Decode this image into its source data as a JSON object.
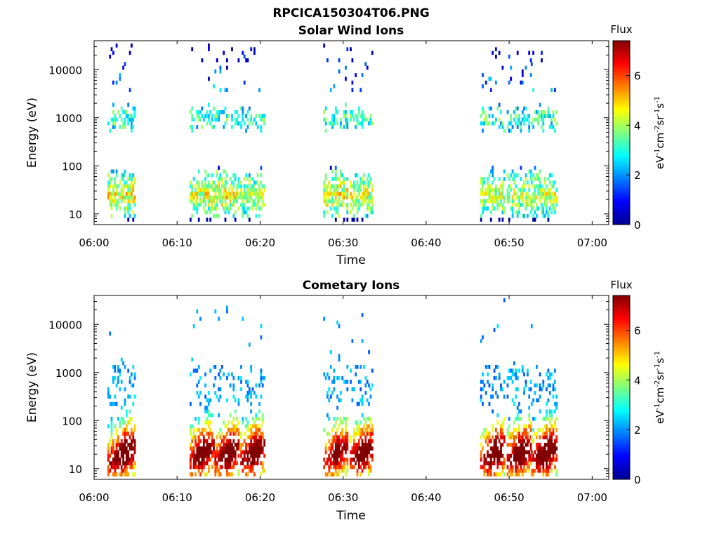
{
  "figure_title": "RPCICA150304T06.PNG",
  "chart_data": [
    {
      "type": "heatmap",
      "title": "Solar Wind Ions",
      "xlabel": "Time",
      "ylabel": "Energy (eV)",
      "x_range_minutes": [
        0,
        62
      ],
      "x_ticks": [
        {
          "label": "06:00",
          "minute": 0
        },
        {
          "label": "06:10",
          "minute": 10
        },
        {
          "label": "06:20",
          "minute": 20
        },
        {
          "label": "06:30",
          "minute": 30
        },
        {
          "label": "06:40",
          "minute": 40
        },
        {
          "label": "06:50",
          "minute": 50
        },
        {
          "label": "07:00",
          "minute": 60
        }
      ],
      "y_scale": "log",
      "y_range": [
        6,
        40000
      ],
      "y_ticks": [
        {
          "label": "10",
          "value": 10
        },
        {
          "label": "100",
          "value": 100
        },
        {
          "label": "1000",
          "value": 1000
        },
        {
          "label": "10000",
          "value": 10000
        }
      ],
      "colorbar": {
        "label": "Flux",
        "unit_label": "eV-1cm-2sr-1s-1",
        "range": [
          0,
          7.4
        ],
        "ticks": [
          "0",
          "2",
          "4",
          "6"
        ],
        "colormap": "jet"
      },
      "bursts": [
        {
          "start": 1.6,
          "end": 5.0,
          "peak": 3.6,
          "flux_max": 4.6
        },
        {
          "start": 11.5,
          "end": 14.3,
          "peak": 13.0,
          "flux_max": 4.4
        },
        {
          "start": 14.5,
          "end": 17.4,
          "peak": 16.1,
          "flux_max": 4.6
        },
        {
          "start": 17.6,
          "end": 20.5,
          "peak": 19.2,
          "flux_max": 4.3
        },
        {
          "start": 27.6,
          "end": 30.4,
          "peak": 29.2,
          "flux_max": 4.6
        },
        {
          "start": 30.8,
          "end": 33.5,
          "peak": 32.3,
          "flux_max": 4.4
        },
        {
          "start": 46.5,
          "end": 49.5,
          "peak": 48.3,
          "flux_max": 4.3
        },
        {
          "start": 49.7,
          "end": 52.6,
          "peak": 51.3,
          "flux_max": 4.2
        },
        {
          "start": 52.6,
          "end": 55.8,
          "peak": 54.4,
          "flux_max": 4.2
        }
      ]
    },
    {
      "type": "heatmap",
      "title": "Cometary Ions",
      "xlabel": "Time",
      "ylabel": "Energy (eV)",
      "x_range_minutes": [
        0,
        62
      ],
      "x_ticks": [
        {
          "label": "06:00",
          "minute": 0
        },
        {
          "label": "06:10",
          "minute": 10
        },
        {
          "label": "06:20",
          "minute": 20
        },
        {
          "label": "06:30",
          "minute": 30
        },
        {
          "label": "06:40",
          "minute": 40
        },
        {
          "label": "06:50",
          "minute": 50
        },
        {
          "label": "07:00",
          "minute": 60
        }
      ],
      "y_scale": "log",
      "y_range": [
        6,
        40000
      ],
      "y_ticks": [
        {
          "label": "10",
          "value": 10
        },
        {
          "label": "100",
          "value": 100
        },
        {
          "label": "1000",
          "value": 1000
        },
        {
          "label": "10000",
          "value": 10000
        }
      ],
      "colorbar": {
        "label": "Flux",
        "unit_label": "eV-1cm-2sr-1s-1",
        "range": [
          0,
          7.4
        ],
        "ticks": [
          "0",
          "2",
          "4",
          "6"
        ],
        "colormap": "jet"
      },
      "bursts": [
        {
          "start": 1.6,
          "end": 5.0,
          "peak": 3.6,
          "flux_max": 7.0
        },
        {
          "start": 11.5,
          "end": 14.3,
          "peak": 13.0,
          "flux_max": 7.0
        },
        {
          "start": 14.5,
          "end": 17.4,
          "peak": 16.1,
          "flux_max": 7.0
        },
        {
          "start": 17.6,
          "end": 20.5,
          "peak": 19.2,
          "flux_max": 6.9
        },
        {
          "start": 27.6,
          "end": 30.4,
          "peak": 29.2,
          "flux_max": 6.4
        },
        {
          "start": 30.8,
          "end": 33.5,
          "peak": 32.3,
          "flux_max": 7.0
        },
        {
          "start": 46.5,
          "end": 49.5,
          "peak": 48.3,
          "flux_max": 7.0
        },
        {
          "start": 49.7,
          "end": 52.6,
          "peak": 51.3,
          "flux_max": 7.0
        },
        {
          "start": 52.6,
          "end": 55.8,
          "peak": 54.4,
          "flux_max": 7.0
        }
      ]
    }
  ]
}
